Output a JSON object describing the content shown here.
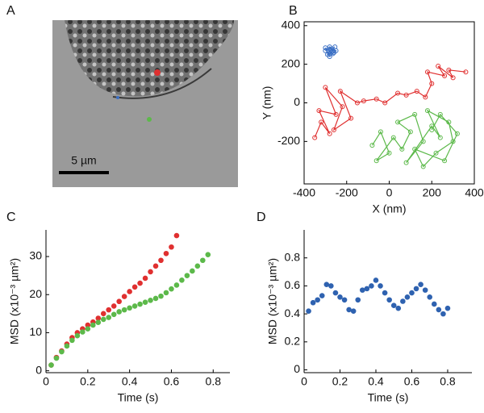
{
  "image_panel": {
    "panel": "A",
    "scale_bar": "5 µm"
  },
  "chart_data": [
    {
      "type": "line",
      "panel": "B",
      "xlabel": "X (nm)",
      "ylabel": "Y (nm)",
      "frame": true,
      "xlim": [
        -400,
        400
      ],
      "ylim": [
        -420,
        420
      ],
      "xticks": [
        -400,
        -200,
        0,
        200,
        400
      ],
      "yticks": [
        -200,
        0,
        200,
        400
      ],
      "series": [
        {
          "color": "#3a6fc4",
          "x": [
            -300,
            -280,
            -260,
            -290,
            -270,
            -250,
            -280,
            -300,
            -265,
            -285,
            -255,
            -275
          ],
          "y": [
            270,
            290,
            260,
            250,
            280,
            270,
            240,
            285,
            255,
            265,
            290,
            275
          ]
        },
        {
          "color": "#e03030",
          "x": [
            -350,
            -320,
            -280,
            -330,
            -250,
            -300,
            -220,
            -260,
            -180,
            -230,
            -150,
            -120,
            -60,
            -20,
            40,
            80,
            130,
            170,
            200,
            180,
            260,
            230,
            300,
            280,
            360
          ],
          "y": [
            -180,
            -100,
            -160,
            -40,
            -60,
            80,
            -20,
            -140,
            -80,
            60,
            0,
            10,
            20,
            0,
            50,
            40,
            60,
            30,
            100,
            160,
            140,
            190,
            130,
            170,
            160
          ]
        },
        {
          "color": "#5cb94a",
          "x": [
            -80,
            -40,
            0,
            -60,
            20,
            60,
            100,
            40,
            120,
            160,
            80,
            200,
            240,
            180,
            280,
            300,
            220,
            160,
            120,
            260,
            320,
            240,
            200
          ],
          "y": [
            -220,
            -150,
            -260,
            -300,
            -180,
            -240,
            -150,
            -100,
            -60,
            -200,
            -310,
            -120,
            -180,
            -40,
            -100,
            -200,
            -260,
            -330,
            -240,
            -300,
            -160,
            -60,
            -140
          ]
        }
      ]
    },
    {
      "type": "scatter",
      "panel": "C",
      "xlabel": "Time (s)",
      "ylabel": "MSD (x10⁻³ µm²)",
      "frame": false,
      "xlim": [
        0,
        0.88
      ],
      "ylim": [
        -0.5,
        37
      ],
      "xticks": [
        0,
        0.2,
        0.4,
        0.6,
        0.8
      ],
      "yticks": [
        0,
        10,
        20,
        30
      ],
      "series": [
        {
          "color": "#e03030",
          "x": [
            0.025,
            0.05,
            0.075,
            0.1,
            0.125,
            0.15,
            0.175,
            0.2,
            0.225,
            0.25,
            0.275,
            0.3,
            0.325,
            0.35,
            0.375,
            0.4,
            0.425,
            0.45,
            0.475,
            0.5,
            0.525,
            0.55,
            0.575,
            0.6,
            0.625
          ],
          "y": [
            1.5,
            3.5,
            5.2,
            7,
            8.7,
            10,
            11,
            12,
            12.8,
            13.8,
            15,
            16,
            17,
            18.2,
            19.5,
            20.8,
            22,
            23,
            24.3,
            26,
            27.5,
            29,
            30.8,
            32.5,
            35.5
          ]
        },
        {
          "color": "#5cb94a",
          "x": [
            0.025,
            0.05,
            0.075,
            0.1,
            0.125,
            0.15,
            0.175,
            0.2,
            0.225,
            0.25,
            0.275,
            0.3,
            0.325,
            0.35,
            0.375,
            0.4,
            0.425,
            0.45,
            0.475,
            0.5,
            0.525,
            0.55,
            0.575,
            0.6,
            0.625,
            0.65,
            0.675,
            0.7,
            0.725,
            0.75,
            0.775
          ],
          "y": [
            1.5,
            3.3,
            5,
            6.5,
            8,
            9.2,
            10.2,
            11,
            12,
            12.7,
            13.5,
            14,
            14.8,
            15.5,
            16,
            16.5,
            17,
            17.5,
            18,
            18.5,
            19,
            19.6,
            20.5,
            21.5,
            22.5,
            23.8,
            25,
            26.2,
            27.5,
            29,
            30.5
          ]
        }
      ]
    },
    {
      "type": "scatter",
      "panel": "D",
      "xlabel": "Time (s)",
      "ylabel": "MSD (x10⁻³ µm²)",
      "frame": false,
      "xlim": [
        0,
        0.935
      ],
      "ylim": [
        -0.02,
        1.0
      ],
      "xticks": [
        0,
        0.2,
        0.4,
        0.6,
        0.8
      ],
      "yticks": [
        0,
        0.2,
        0.4,
        0.6,
        0.8
      ],
      "series": [
        {
          "color": "#2f62b0",
          "x": [
            0.025,
            0.05,
            0.075,
            0.1,
            0.125,
            0.15,
            0.175,
            0.2,
            0.225,
            0.25,
            0.275,
            0.3,
            0.325,
            0.35,
            0.375,
            0.4,
            0.425,
            0.45,
            0.475,
            0.5,
            0.525,
            0.55,
            0.575,
            0.6,
            0.625,
            0.65,
            0.675,
            0.7,
            0.725,
            0.75,
            0.775,
            0.8
          ],
          "y": [
            0.42,
            0.48,
            0.5,
            0.53,
            0.61,
            0.6,
            0.55,
            0.52,
            0.5,
            0.43,
            0.42,
            0.5,
            0.57,
            0.58,
            0.6,
            0.64,
            0.6,
            0.55,
            0.5,
            0.46,
            0.44,
            0.49,
            0.52,
            0.55,
            0.58,
            0.61,
            0.57,
            0.52,
            0.47,
            0.43,
            0.4,
            0.44
          ]
        }
      ]
    }
  ]
}
